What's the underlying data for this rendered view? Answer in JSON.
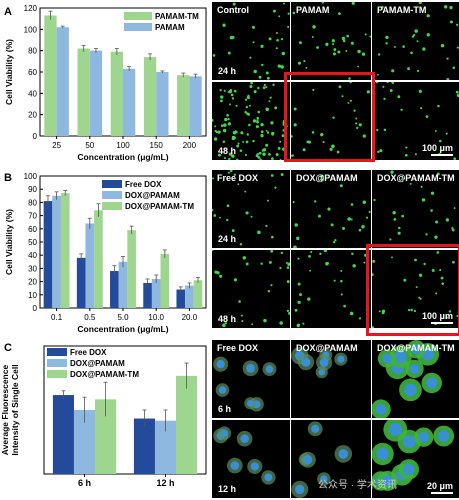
{
  "panels": {
    "a": "A",
    "b": "B",
    "c": "C"
  },
  "chart_data": [
    {
      "type": "bar",
      "panel": "A",
      "categories": [
        "25",
        "50",
        "100",
        "150",
        "200"
      ],
      "series": [
        {
          "name": "PAMAM-TM",
          "color": "#9ed58f",
          "values": [
            113,
            82,
            79,
            74,
            57
          ],
          "errors": [
            4,
            3,
            3,
            3,
            2
          ]
        },
        {
          "name": "PAMAM",
          "color": "#8fb8e0",
          "values": [
            102,
            80,
            63,
            60,
            56
          ],
          "errors": [
            1,
            2,
            2,
            1,
            2
          ]
        }
      ],
      "xlabel": "Concentration (μg/mL)",
      "ylabel": "Cell Viability (%)",
      "ylim": [
        0,
        120
      ],
      "yticks": [
        0,
        20,
        40,
        60,
        80,
        100,
        120
      ],
      "legend": "top-right",
      "grid": false
    },
    {
      "type": "bar",
      "panel": "B",
      "categories": [
        "0.1",
        "0.5",
        "5.0",
        "10.0",
        "20.0"
      ],
      "series": [
        {
          "name": "Free DOX",
          "color": "#234a9b",
          "values": [
            81,
            38,
            28,
            19,
            14
          ],
          "errors": [
            4,
            3,
            4,
            3,
            2
          ]
        },
        {
          "name": "DOX@PAMAM",
          "color": "#8fb8e0",
          "values": [
            85,
            64,
            35,
            22,
            17
          ],
          "errors": [
            3,
            4,
            4,
            3,
            2
          ]
        },
        {
          "name": "DOX@PAMAM-TM",
          "color": "#9ed58f",
          "values": [
            87,
            74,
            59,
            41,
            21
          ],
          "errors": [
            2,
            5,
            3,
            3,
            2
          ]
        }
      ],
      "xlabel": "Concentration (μg/mL)",
      "ylabel": "Cell Viability (%)",
      "ylim": [
        0,
        100
      ],
      "yticks": [
        0,
        10,
        20,
        30,
        40,
        50,
        60,
        70,
        80,
        90,
        100
      ],
      "legend": "top-right",
      "grid": false
    },
    {
      "type": "bar",
      "panel": "C",
      "categories": [
        "6 h",
        "12 h"
      ],
      "series": [
        {
          "name": "Free DOX",
          "color": "#234a9b",
          "values": [
            37,
            26
          ],
          "errors": [
            2,
            4
          ]
        },
        {
          "name": "DOX@PAMAM",
          "color": "#8fb8e0",
          "values": [
            30,
            25
          ],
          "errors": [
            6,
            5
          ]
        },
        {
          "name": "DOX@PAMAM-TM",
          "color": "#9ed58f",
          "values": [
            35,
            46
          ],
          "errors": [
            8,
            6
          ]
        }
      ],
      "xlabel": "",
      "ylabel": "Average Fluorescence Intensity of Single Cell",
      "ylim": [
        0,
        60
      ],
      "legend": "top-left",
      "grid": false
    }
  ],
  "micrographs": {
    "top": {
      "cols": [
        "Control",
        "PAMAM",
        "PAMAM-TM"
      ],
      "rows": [
        "24 h",
        "48 h"
      ],
      "scale": "100 μm"
    },
    "mid": {
      "cols": [
        "Free DOX",
        "DOX@PAMAM",
        "DOX@PAMAM-TM"
      ],
      "rows": [
        "24 h",
        "48 h"
      ],
      "scale": "100 μm"
    },
    "bottom": {
      "cols": [
        "Free DOX",
        "DOX@PAMAM",
        "DOX@PAMAM-TM"
      ],
      "rows": [
        "6 h",
        "12 h"
      ],
      "scale": "20 μm"
    }
  },
  "watermark": "公众号 · 学术资讯"
}
